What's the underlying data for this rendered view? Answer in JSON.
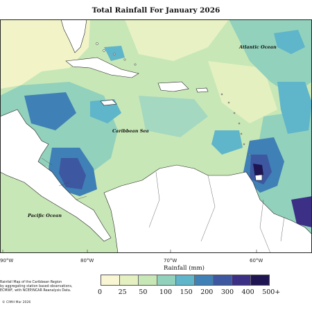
{
  "map": {
    "title": "Total Rainfall For January 2026",
    "labels": {
      "atlantic": "Atlantic Ocean",
      "caribbean": "Caribbean Sea",
      "pacific": "Pacific Ocean"
    },
    "longitude_ticks": [
      "90°W",
      "80°W",
      "70°W",
      "60°W"
    ],
    "legend": {
      "title": "Rainfall (mm)",
      "colors": [
        "#f9f7d3",
        "#e4f0c0",
        "#c8e7b6",
        "#92d1bc",
        "#5fb5c9",
        "#3f80b6",
        "#3d57a0",
        "#3b2f86",
        "#1e1552"
      ],
      "labels": [
        "0",
        "25",
        "50",
        "100",
        "150",
        "200",
        "300",
        "400",
        "500+"
      ]
    },
    "note_lines": [
      "Rainfall Map of the Caribbean Region",
      "by aggregating station based observations,",
      "ECMWF, with NCEP/NCAR Reanalysis Data."
    ],
    "credit": "© CIMH  Mar 2026"
  }
}
